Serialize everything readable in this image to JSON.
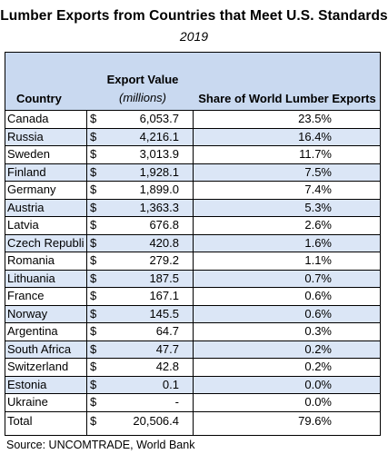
{
  "title": "Lumber Exports from Countries that Meet U.S. Standards",
  "subtitle": "2019",
  "headers": {
    "country": "Country",
    "export_value": "Export Value",
    "export_unit": "(millions)",
    "share": "Share of World Lumber Exports"
  },
  "rows": [
    {
      "country": "Canada",
      "dollar": "$",
      "value": "6,053.7",
      "share": "23.5%"
    },
    {
      "country": "Russia",
      "dollar": "$",
      "value": "4,216.1",
      "share": "16.4%"
    },
    {
      "country": "Sweden",
      "dollar": "$",
      "value": "3,013.9",
      "share": "11.7%"
    },
    {
      "country": "Finland",
      "dollar": "$",
      "value": "1,928.1",
      "share": "7.5%"
    },
    {
      "country": "Germany",
      "dollar": "$",
      "value": "1,899.0",
      "share": "7.4%"
    },
    {
      "country": "Austria",
      "dollar": "$",
      "value": "1,363.3",
      "share": "5.3%"
    },
    {
      "country": "Latvia",
      "dollar": "$",
      "value": "676.8",
      "share": "2.6%"
    },
    {
      "country": "Czech Republi",
      "dollar": "$",
      "value": "420.8",
      "share": "1.6%"
    },
    {
      "country": "Romania",
      "dollar": "$",
      "value": "279.2",
      "share": "1.1%"
    },
    {
      "country": "Lithuania",
      "dollar": "$",
      "value": "187.5",
      "share": "0.7%"
    },
    {
      "country": "France",
      "dollar": "$",
      "value": "167.1",
      "share": "0.6%"
    },
    {
      "country": "Norway",
      "dollar": "$",
      "value": "145.5",
      "share": "0.6%"
    },
    {
      "country": "Argentina",
      "dollar": "$",
      "value": "64.7",
      "share": "0.3%"
    },
    {
      "country": "South Africa",
      "dollar": "$",
      "value": "47.7",
      "share": "0.2%"
    },
    {
      "country": "Switzerland",
      "dollar": "$",
      "value": "42.8",
      "share": "0.2%"
    },
    {
      "country": "Estonia",
      "dollar": "$",
      "value": "0.1",
      "share": "0.0%"
    },
    {
      "country": "Ukraine",
      "dollar": "$",
      "value": "-",
      "share": "0.0%"
    }
  ],
  "total": {
    "country": "Total",
    "dollar": "$",
    "value": "20,506.4",
    "share": "79.6%"
  },
  "source": "Source: UNCOMTRADE, World Bank",
  "colors": {
    "header_bg": "#c9d9f0",
    "alt_row_bg": "#dbe6f6"
  }
}
